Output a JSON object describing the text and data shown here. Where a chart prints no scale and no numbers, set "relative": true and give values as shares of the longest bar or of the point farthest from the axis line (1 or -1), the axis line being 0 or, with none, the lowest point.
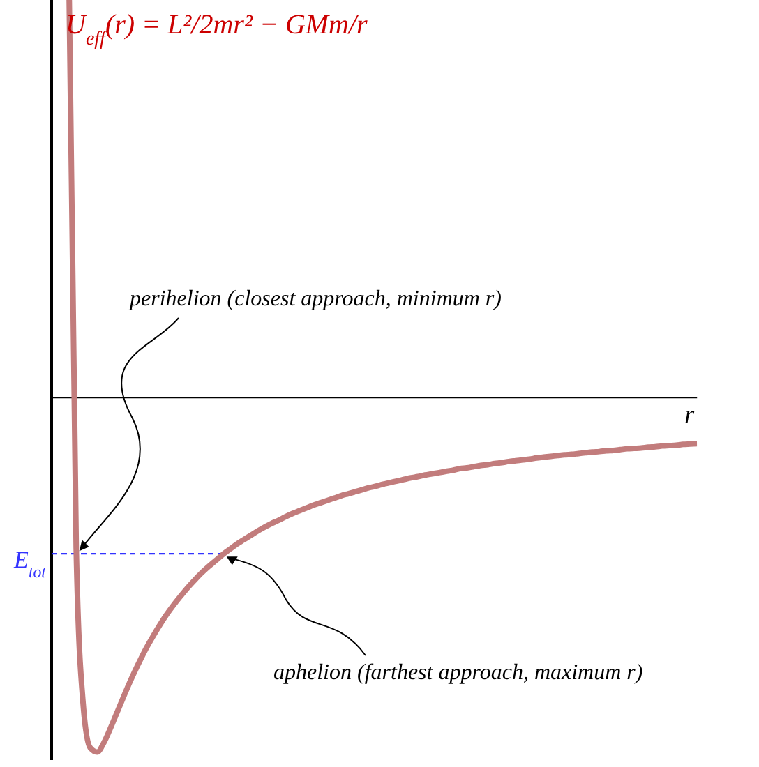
{
  "chart_data": {
    "type": "line",
    "relative": true,
    "title": "U$_{eff}$(r) = L²/2mr² − GMm/r",
    "xlabel": "r",
    "categories": [
      null,
      null,
      null,
      null,
      null,
      null,
      null,
      null,
      null,
      null,
      null,
      null,
      null,
      null,
      null,
      null,
      null,
      null,
      null,
      null,
      null,
      null,
      null,
      null,
      null,
      null,
      null,
      null,
      null,
      null,
      null,
      null,
      null,
      null,
      null,
      null,
      null,
      null,
      null,
      null,
      null,
      null,
      null,
      null,
      null,
      null,
      null,
      null,
      null,
      null,
      null,
      null,
      null,
      null,
      null,
      null,
      null,
      null,
      null,
      null,
      null,
      null,
      null,
      null,
      null,
      null,
      null,
      null,
      null,
      null,
      null,
      null,
      null,
      null,
      null,
      null,
      null,
      null,
      null,
      null,
      null,
      null,
      null,
      null,
      null,
      null,
      null,
      null,
      null,
      null,
      null
    ],
    "values": [
      1.0,
      -0.379,
      -0.772,
      -0.881,
      -0.892,
      -0.867,
      -0.828,
      -0.786,
      -0.744,
      -0.704,
      -0.667,
      -0.632,
      -0.601,
      -0.572,
      -0.545,
      -0.521,
      -0.499,
      -0.478,
      -0.459,
      -0.441,
      -0.425,
      -0.41,
      -0.395,
      -0.382,
      -0.369,
      -0.358,
      -0.347,
      -0.336,
      -0.326,
      -0.317,
      -0.309,
      -0.3,
      -0.292,
      -0.285,
      -0.278,
      -0.271,
      -0.265,
      -0.259,
      -0.253,
      -0.247,
      -0.242,
      -0.237,
      -0.232,
      -0.227,
      -0.223,
      -0.218,
      -0.214,
      -0.21,
      -0.206,
      -0.202,
      -0.199,
      -0.195,
      -0.192,
      -0.189,
      -0.186,
      -0.183,
      -0.179,
      -0.177,
      -0.174,
      -0.171,
      -0.169,
      -0.166,
      -0.164,
      -0.161,
      -0.159,
      -0.157,
      -0.155,
      -0.152,
      -0.15,
      -0.148,
      -0.146,
      -0.144,
      -0.143,
      -0.141,
      -0.139,
      -0.137,
      -0.136,
      -0.134,
      -0.133,
      -0.131,
      -0.129,
      -0.128,
      -0.127,
      -0.125,
      -0.124,
      -0.122,
      -0.121,
      -0.12,
      -0.118,
      -0.117,
      -0.116
    ],
    "color": "#c27c7c",
    "marker": "none",
    "ref_lines": [
      {
        "axis": "y",
        "value": -0.393,
        "label": "E$_{tot}$",
        "color": "#3333ff",
        "line_style": "dashed"
      }
    ],
    "annotations": [
      "perihelion (closest approach, minimum r)",
      "aphelion (farthest approach, maximum r)"
    ]
  }
}
